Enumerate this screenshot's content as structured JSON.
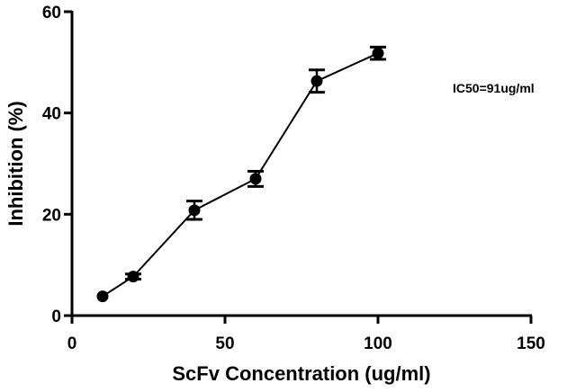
{
  "chart_data": {
    "type": "line",
    "title": "",
    "xlabel": "ScFv Concentration (ug/ml)",
    "ylabel": "Inhibition (%)",
    "xlim": [
      0,
      150
    ],
    "ylim": [
      0,
      60
    ],
    "xticks": [
      0,
      50,
      100,
      150
    ],
    "yticks": [
      0,
      20,
      40,
      60
    ],
    "grid": false,
    "series": [
      {
        "name": "Inhibition",
        "x": [
          10,
          20,
          40,
          60,
          80,
          100
        ],
        "y": [
          3.8,
          7.7,
          20.8,
          27.0,
          46.3,
          51.8
        ],
        "error": [
          0.3,
          0.5,
          1.8,
          1.5,
          2.2,
          1.2
        ]
      }
    ],
    "annotation": "IC50=91ug/ml",
    "color": "#000000"
  }
}
